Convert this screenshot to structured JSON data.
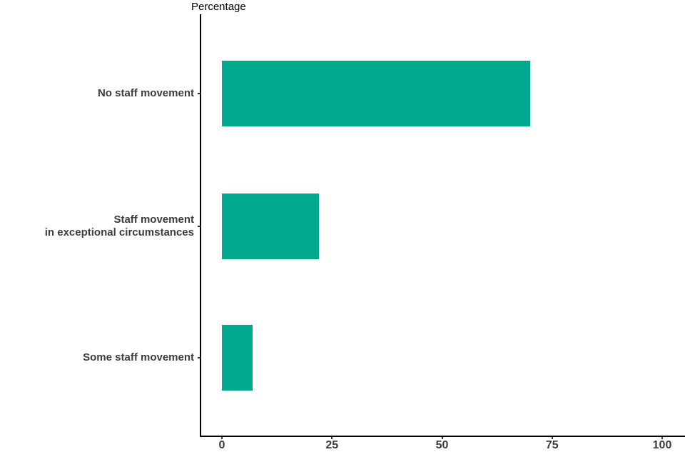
{
  "chart_data": {
    "type": "bar",
    "orientation": "horizontal",
    "title": "Percentage",
    "categories": [
      "No staff movement",
      "Staff movement\nin exceptional circumstances",
      "Some staff movement"
    ],
    "values": [
      70,
      22,
      7
    ],
    "xlabel": "",
    "ylabel": "",
    "xlim": [
      0,
      100
    ],
    "x_ticks": [
      0,
      25,
      50,
      75,
      100
    ],
    "x_tick_labels": [
      "0",
      "25",
      "50",
      "75",
      "100"
    ],
    "bar_color": "#00A88E",
    "axis_color": "#000000",
    "text_color": "#3C3C3C",
    "title_color": "#000000",
    "grid": false,
    "legend_position": "none"
  }
}
